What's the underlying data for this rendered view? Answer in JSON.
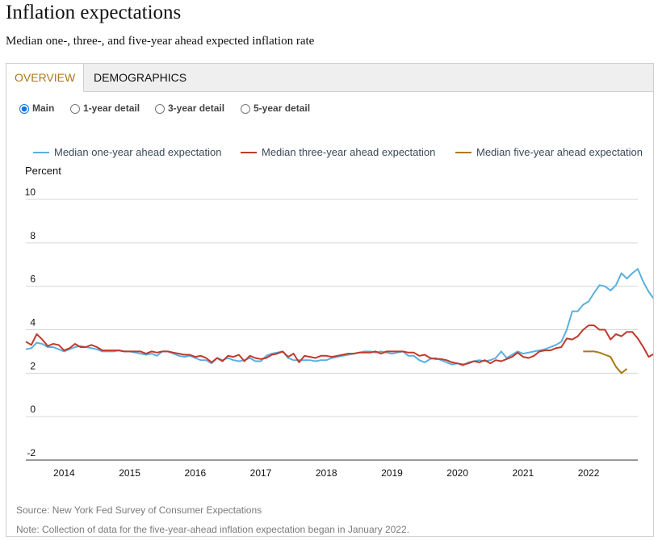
{
  "page": {
    "title": "Inflation expectations",
    "subtitle": "Median one-, three-, and five-year ahead expected inflation rate"
  },
  "tabs": [
    {
      "label": "OVERVIEW",
      "active": true
    },
    {
      "label": "DEMOGRAPHICS",
      "active": false
    }
  ],
  "radios": [
    {
      "label": "Main",
      "selected": true
    },
    {
      "label": "1-year detail",
      "selected": false
    },
    {
      "label": "3-year detail",
      "selected": false
    },
    {
      "label": "5-year detail",
      "selected": false
    }
  ],
  "footnotes": {
    "source": "Source: New York Fed Survey of Consumer Expectations",
    "note": "Note: Collection of data for the five-year-ahead inflation expectation began in January 2022."
  },
  "chart_data": {
    "type": "line",
    "title": "",
    "ylabel": "Percent",
    "xlabel": "",
    "ylim": [
      -2,
      10
    ],
    "yticks": [
      -2,
      0,
      2,
      4,
      6,
      8,
      10
    ],
    "xlim": [
      "2013-06",
      "2022-10"
    ],
    "xtick_labels": [
      "2014",
      "2015",
      "2016",
      "2017",
      "2018",
      "2019",
      "2020",
      "2021",
      "2022"
    ],
    "grid": true,
    "legend_position": "top",
    "series": [
      {
        "name": "Median one-year ahead expectation",
        "color": "#5aafe0",
        "start": "2013-06",
        "values": [
          3.1,
          3.15,
          3.4,
          3.35,
          3.2,
          3.2,
          3.1,
          3.0,
          3.1,
          3.2,
          3.25,
          3.2,
          3.15,
          3.1,
          3.0,
          3.0,
          3.0,
          3.05,
          3.0,
          3.0,
          2.95,
          2.9,
          2.85,
          2.9,
          2.8,
          3.0,
          3.0,
          2.9,
          2.8,
          2.75,
          2.8,
          2.7,
          2.6,
          2.6,
          2.45,
          2.7,
          2.6,
          2.7,
          2.6,
          2.55,
          2.6,
          2.7,
          2.55,
          2.55,
          2.8,
          2.9,
          2.95,
          3.0,
          2.7,
          2.6,
          2.6,
          2.6,
          2.6,
          2.55,
          2.6,
          2.6,
          2.7,
          2.75,
          2.8,
          2.85,
          2.9,
          2.95,
          3.0,
          3.0,
          2.95,
          3.0,
          2.95,
          2.9,
          2.95,
          3.0,
          2.8,
          2.8,
          2.6,
          2.5,
          2.65,
          2.7,
          2.6,
          2.5,
          2.4,
          2.45,
          2.35,
          2.5,
          2.55,
          2.6,
          2.55,
          2.6,
          2.7,
          3.0,
          2.7,
          2.85,
          3.0,
          2.9,
          2.95,
          3.0,
          3.05,
          3.1,
          3.2,
          3.3,
          3.45,
          4.0,
          4.85,
          4.85,
          5.15,
          5.3,
          5.7,
          6.05,
          6.0,
          5.8,
          6.05,
          6.6,
          6.35,
          6.6,
          6.8,
          6.2,
          5.75,
          5.4
        ]
      },
      {
        "name": "Median three-year ahead expectation",
        "color": "#c0392b",
        "start": "2013-06",
        "values": [
          3.45,
          3.3,
          3.8,
          3.55,
          3.25,
          3.35,
          3.3,
          3.05,
          3.15,
          3.35,
          3.2,
          3.2,
          3.3,
          3.2,
          3.05,
          3.05,
          3.05,
          3.05,
          3.0,
          3.0,
          3.0,
          3.0,
          2.9,
          3.0,
          2.95,
          3.0,
          3.0,
          2.95,
          2.9,
          2.85,
          2.85,
          2.75,
          2.8,
          2.7,
          2.5,
          2.7,
          2.55,
          2.8,
          2.75,
          2.85,
          2.55,
          2.8,
          2.7,
          2.65,
          2.7,
          2.85,
          2.9,
          3.0,
          2.75,
          2.9,
          2.5,
          2.8,
          2.75,
          2.7,
          2.8,
          2.8,
          2.75,
          2.8,
          2.85,
          2.9,
          2.9,
          2.95,
          2.95,
          2.95,
          3.0,
          2.9,
          3.0,
          3.0,
          3.0,
          3.0,
          2.95,
          2.95,
          2.8,
          2.85,
          2.7,
          2.65,
          2.65,
          2.6,
          2.5,
          2.45,
          2.4,
          2.45,
          2.55,
          2.5,
          2.6,
          2.45,
          2.6,
          2.55,
          2.65,
          2.75,
          2.95,
          2.75,
          2.7,
          2.8,
          3.0,
          3.05,
          3.05,
          3.15,
          3.2,
          3.6,
          3.55,
          3.7,
          4.0,
          4.2,
          4.2,
          4.0,
          4.0,
          3.55,
          3.8,
          3.7,
          3.9,
          3.9,
          3.6,
          3.2,
          2.75,
          2.9
        ]
      },
      {
        "name": "Median five-year ahead expectation",
        "color": "#a87916",
        "start": "2021-12",
        "values": [
          3.0,
          3.0,
          3.0,
          2.95,
          2.85,
          2.75,
          2.3,
          2.0,
          2.2
        ]
      }
    ]
  }
}
